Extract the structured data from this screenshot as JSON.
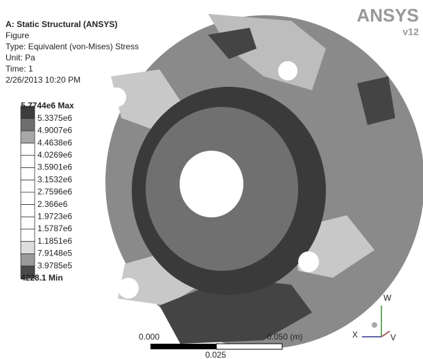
{
  "header": {
    "lines": [
      "A: Static Structural (ANSYS)",
      "Figure",
      "Type: Equivalent (von-Mises) Stress",
      "Unit: Pa",
      "Time: 1",
      "2/26/2013 10:20 PM"
    ]
  },
  "legend": {
    "entries": [
      "5.7744e6 Max",
      "5.3375e6",
      "4.9007e6",
      "4.4638e6",
      "4.0269e6",
      "3.5901e6",
      "3.1532e6",
      "2.7596e6",
      "2.366e6",
      "1.9723e6",
      "1.5787e6",
      "1.1851e6",
      "7.9148e5",
      "3.9785e5",
      "4228.1 Min"
    ]
  },
  "logo": {
    "name": "ANSYS",
    "version": "v12"
  },
  "scale_bar": {
    "start": "0.000",
    "end": "0.050 (m)",
    "mid": "0.025"
  },
  "triad": {
    "up": "W",
    "left": "X",
    "right": "V"
  }
}
